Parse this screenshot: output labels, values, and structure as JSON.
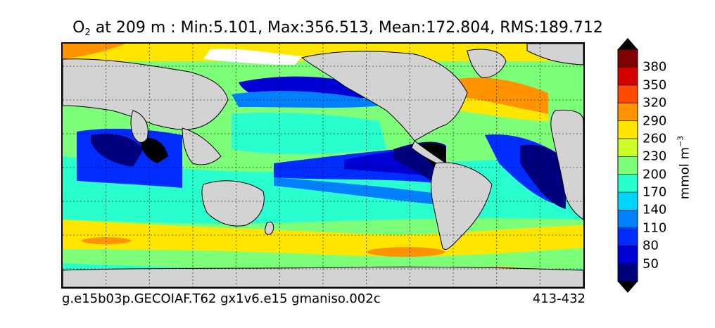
{
  "title": {
    "variable": "O",
    "subscript": "2",
    "text": " at 209 m : Min:5.101, Max:356.513, Mean:172.804, RMS:189.712"
  },
  "footer": {
    "left": "g.e15b03p.GECOIAF.T62 gx1v6.e15 gmaniso.002c",
    "right": "413-432"
  },
  "colorbar": {
    "unit_base": "mmol m",
    "unit_exp": "−3",
    "labels": [
      "50",
      "80",
      "110",
      "140",
      "170",
      "200",
      "230",
      "260",
      "290",
      "320",
      "350",
      "380"
    ],
    "levels": [
      50,
      80,
      110,
      140,
      170,
      200,
      230,
      260,
      290,
      320,
      350,
      380
    ],
    "colors": [
      "#00007f",
      "#0000d5",
      "#002cff",
      "#0080ff",
      "#00d5ff",
      "#29ffce",
      "#7dff7a",
      "#ceff29",
      "#ffe600",
      "#ff9400",
      "#ff4800",
      "#d50000",
      "#7f0000"
    ],
    "under_color": "#000000",
    "over_color": "#000000"
  },
  "map": {
    "land_color": "#d3d3d3",
    "ice_color": "#ffffff",
    "background_value": 200
  }
}
